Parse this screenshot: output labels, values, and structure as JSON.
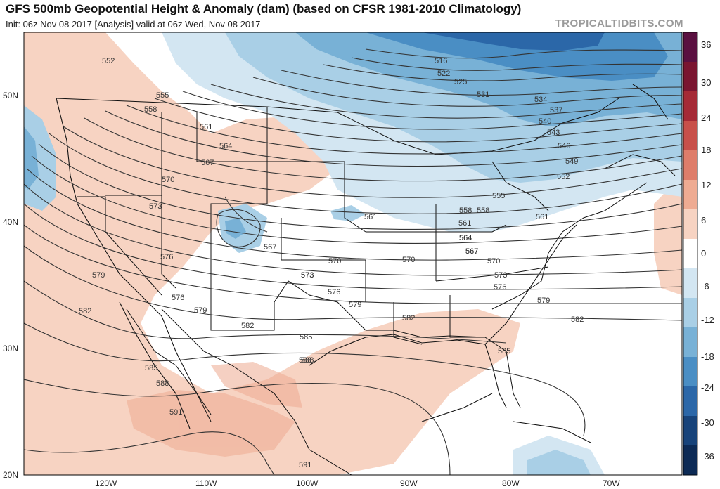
{
  "header": {
    "title": "GFS 500mb Geopotential Height & Anomaly (dam) (based on CFSR 1981-2010 Climatology)",
    "subtitle": "Init: 06z Nov 08 2017   [Analysis]   valid at 06z Wed, Nov 08 2017",
    "brand": "TROPICALTIDBITS.COM"
  },
  "axes": {
    "lat_labels": [
      "50N",
      "40N",
      "30N",
      "20N"
    ],
    "lon_labels": [
      "120W",
      "110W",
      "100W",
      "90W",
      "80W",
      "70W"
    ]
  },
  "colorbar": {
    "labels": [
      "36",
      "30",
      "24",
      "18",
      "12",
      "6",
      "0",
      "-6",
      "-12",
      "-18",
      "-24",
      "-30",
      "-36"
    ],
    "colors": [
      "#5a1040",
      "#7a1530",
      "#a52a36",
      "#c8504a",
      "#de7d6a",
      "#eeab92",
      "#f7d3c2",
      "#ffffff",
      "#d3e6f2",
      "#a9cfe6",
      "#78b1d6",
      "#4a8ec4",
      "#2b67a8",
      "#17437a",
      "#0c2a55"
    ]
  },
  "contours": {
    "labels": [
      "516",
      "522",
      "525",
      "531",
      "534",
      "537",
      "540",
      "543",
      "546",
      "549",
      "552",
      "555",
      "558",
      "561",
      "564",
      "567",
      "570",
      "573",
      "576",
      "579",
      "582",
      "585",
      "588",
      "591",
      "552",
      "555",
      "558",
      "561",
      "564",
      "567",
      "570",
      "573",
      "576",
      "579",
      "582",
      "585",
      "588",
      "591",
      "561",
      "567",
      "570",
      "573",
      "576",
      "579",
      "582",
      "585",
      "588",
      "558",
      "561",
      "564",
      "567",
      "570",
      "573",
      "576",
      "579",
      "582"
    ]
  }
}
